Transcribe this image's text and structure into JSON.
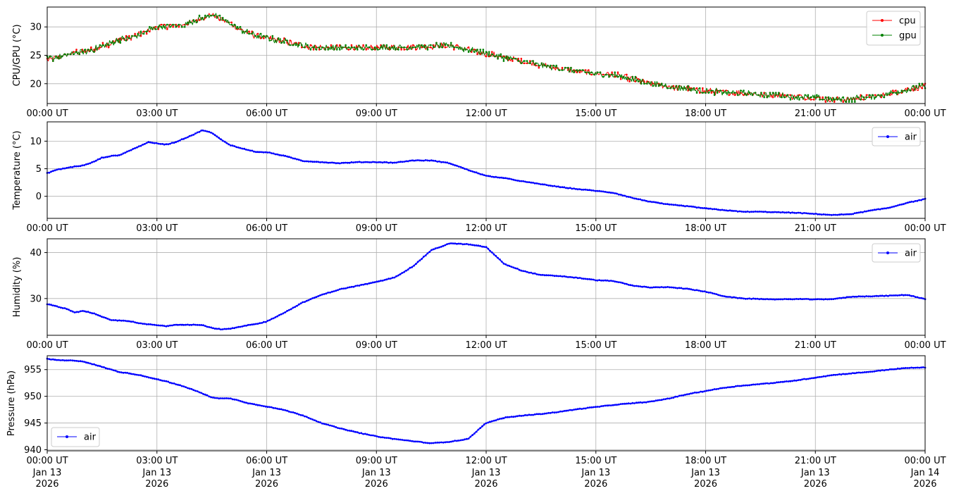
{
  "chart_data": [
    {
      "type": "line",
      "ylabel": "CPU/GPU (°C)",
      "ylim": [
        16.5,
        33.5
      ],
      "yticks": [
        20,
        25,
        30
      ],
      "grid": true,
      "legend_position": "top-right",
      "x_hours": [
        0,
        0.25,
        0.5,
        0.75,
        1,
        1.25,
        1.5,
        1.75,
        2,
        2.25,
        2.5,
        2.75,
        3,
        3.25,
        3.5,
        3.75,
        4,
        4.25,
        4.5,
        4.75,
        5,
        5.25,
        5.5,
        5.75,
        6,
        6.5,
        7,
        7.5,
        8,
        8.5,
        9,
        9.5,
        10,
        10.5,
        11,
        11.5,
        12,
        12.5,
        13,
        13.5,
        14,
        14.5,
        15,
        15.5,
        16,
        16.5,
        17,
        17.5,
        18,
        18.5,
        19,
        19.5,
        20,
        20.5,
        21,
        21.5,
        22,
        22.5,
        23,
        23.5,
        24
      ],
      "series": [
        {
          "name": "cpu",
          "color": "#ff0000",
          "values": [
            24.2,
            24.6,
            25.0,
            25.5,
            25.6,
            26.0,
            26.6,
            27.2,
            27.8,
            28.0,
            28.6,
            29.4,
            30.0,
            30.2,
            30.2,
            30.4,
            31.0,
            31.6,
            32.2,
            31.4,
            30.6,
            29.6,
            28.9,
            28.4,
            28.0,
            27.4,
            26.7,
            26.3,
            26.3,
            26.3,
            26.3,
            26.4,
            26.5,
            26.6,
            26.7,
            26.0,
            25.3,
            24.6,
            23.9,
            23.3,
            22.7,
            22.2,
            21.8,
            21.5,
            20.8,
            20.0,
            19.5,
            19.1,
            18.7,
            18.5,
            18.3,
            18.1,
            18.0,
            17.7,
            17.5,
            17.2,
            17.3,
            17.7,
            18.2,
            19.0,
            19.5
          ]
        },
        {
          "name": "gpu",
          "color": "#008000",
          "values": [
            24.3,
            24.6,
            25.0,
            25.5,
            25.6,
            26.0,
            26.6,
            27.2,
            27.8,
            28.0,
            28.6,
            29.4,
            30.0,
            30.2,
            30.2,
            30.4,
            31.0,
            31.6,
            32.2,
            31.4,
            30.6,
            29.6,
            28.9,
            28.4,
            28.0,
            27.4,
            26.7,
            26.3,
            26.3,
            26.3,
            26.3,
            26.4,
            26.5,
            26.6,
            26.7,
            26.0,
            25.3,
            24.6,
            23.9,
            23.3,
            22.7,
            22.2,
            21.8,
            21.5,
            20.8,
            20.0,
            19.5,
            19.1,
            18.7,
            18.5,
            18.3,
            18.1,
            18.0,
            17.7,
            17.5,
            17.2,
            17.3,
            17.7,
            18.2,
            19.0,
            19.6
          ]
        }
      ]
    },
    {
      "type": "line",
      "ylabel": "Temperature (°C)",
      "ylim": [
        -4,
        13.5
      ],
      "yticks": [
        0,
        5,
        10
      ],
      "grid": true,
      "legend_position": "top-right",
      "x_hours": [
        0,
        0.25,
        0.5,
        0.75,
        1,
        1.25,
        1.5,
        1.75,
        2,
        2.25,
        2.5,
        2.75,
        3,
        3.25,
        3.5,
        3.75,
        4,
        4.25,
        4.5,
        4.75,
        5,
        5.25,
        5.5,
        5.75,
        6,
        6.5,
        7,
        7.5,
        8,
        8.5,
        9,
        9.5,
        10,
        10.5,
        11,
        11.5,
        12,
        12.5,
        13,
        13.5,
        14,
        14.5,
        15,
        15.5,
        16,
        16.5,
        17,
        17.5,
        18,
        18.5,
        19,
        19.5,
        20,
        20.5,
        21,
        21.5,
        22,
        22.5,
        23,
        23.5,
        24
      ],
      "series": [
        {
          "name": "air",
          "color": "#0000ff",
          "values": [
            4.2,
            4.8,
            5.1,
            5.4,
            5.6,
            6.2,
            7.0,
            7.3,
            7.5,
            8.3,
            9.0,
            9.8,
            9.6,
            9.4,
            9.8,
            10.5,
            11.2,
            12.0,
            11.5,
            10.3,
            9.3,
            8.8,
            8.4,
            8.0,
            8.0,
            7.3,
            6.4,
            6.2,
            6.0,
            6.2,
            6.2,
            6.1,
            6.5,
            6.5,
            6.0,
            4.8,
            3.7,
            3.3,
            2.7,
            2.2,
            1.7,
            1.3,
            1.0,
            0.6,
            -0.3,
            -1.0,
            -1.5,
            -1.8,
            -2.2,
            -2.5,
            -2.8,
            -2.8,
            -2.9,
            -3.0,
            -3.2,
            -3.4,
            -3.2,
            -2.6,
            -2.1,
            -1.2,
            -0.5
          ]
        }
      ]
    },
    {
      "type": "line",
      "ylabel": "Humidity (%)",
      "ylim": [
        22,
        43
      ],
      "yticks": [
        30,
        40
      ],
      "grid": true,
      "legend_position": "top-right",
      "x_hours": [
        0,
        0.25,
        0.5,
        0.75,
        1,
        1.25,
        1.5,
        1.75,
        2,
        2.25,
        2.5,
        2.75,
        3,
        3.25,
        3.5,
        3.75,
        4,
        4.25,
        4.5,
        4.75,
        5,
        5.25,
        5.5,
        5.75,
        6,
        6.5,
        7,
        7.5,
        8,
        8.5,
        9,
        9.5,
        10,
        10.5,
        11,
        11.5,
        12,
        12.5,
        13,
        13.5,
        14,
        14.5,
        15,
        15.5,
        16,
        16.5,
        17,
        17.5,
        18,
        18.5,
        19,
        19.5,
        20,
        20.5,
        21,
        21.5,
        22,
        22.5,
        23,
        23.5,
        24
      ],
      "series": [
        {
          "name": "air",
          "color": "#0000ff",
          "values": [
            28.8,
            28.3,
            27.8,
            27.0,
            27.3,
            26.8,
            26.0,
            25.3,
            25.2,
            25.1,
            24.6,
            24.4,
            24.2,
            24.0,
            24.3,
            24.3,
            24.3,
            24.2,
            23.6,
            23.3,
            23.4,
            23.8,
            24.2,
            24.5,
            25.0,
            27.0,
            29.2,
            30.8,
            32.0,
            32.8,
            33.6,
            34.6,
            37.0,
            40.5,
            42.0,
            41.8,
            41.2,
            37.5,
            36.0,
            35.1,
            34.9,
            34.5,
            34.0,
            33.8,
            32.8,
            32.4,
            32.5,
            32.1,
            31.5,
            30.5,
            30.0,
            29.9,
            29.8,
            29.9,
            29.8,
            29.9,
            30.4,
            30.5,
            30.6,
            30.8,
            29.9
          ]
        }
      ]
    },
    {
      "type": "line",
      "ylabel": "Pressure (hPa)",
      "ylim": [
        939.8,
        957.6
      ],
      "yticks": [
        940,
        945,
        950,
        955
      ],
      "grid": true,
      "legend_position": "bottom-left",
      "x_hours": [
        0,
        0.25,
        0.5,
        0.75,
        1,
        1.25,
        1.5,
        1.75,
        2,
        2.25,
        2.5,
        2.75,
        3,
        3.25,
        3.5,
        3.75,
        4,
        4.25,
        4.5,
        4.75,
        5,
        5.25,
        5.5,
        5.75,
        6,
        6.5,
        7,
        7.5,
        8,
        8.5,
        9,
        9.5,
        10,
        10.5,
        11,
        11.5,
        12,
        12.5,
        13,
        13.5,
        14,
        14.5,
        15,
        15.5,
        16,
        16.5,
        17,
        17.5,
        18,
        18.5,
        19,
        19.5,
        20,
        20.5,
        21,
        21.5,
        22,
        22.5,
        23,
        23.5,
        24
      ],
      "series": [
        {
          "name": "air",
          "color": "#0000ff",
          "values": [
            957.0,
            956.8,
            956.7,
            956.7,
            956.5,
            956.0,
            955.5,
            955.0,
            954.5,
            954.3,
            954.0,
            953.6,
            953.2,
            952.8,
            952.3,
            951.8,
            951.2,
            950.5,
            949.8,
            949.6,
            949.6,
            949.2,
            948.7,
            948.4,
            948.1,
            947.4,
            946.4,
            945.0,
            944.0,
            943.2,
            942.5,
            942.0,
            941.6,
            941.2,
            941.5,
            942.0,
            945.0,
            946.0,
            946.4,
            946.7,
            947.1,
            947.6,
            948.0,
            948.4,
            948.7,
            949.0,
            949.6,
            950.4,
            951.0,
            951.6,
            952.0,
            952.3,
            952.6,
            953.0,
            953.5,
            954.0,
            954.3,
            954.6,
            955.0,
            955.3,
            955.4
          ]
        }
      ]
    }
  ],
  "x_tick_labels": [
    "00:00 UT",
    "03:00 UT",
    "06:00 UT",
    "09:00 UT",
    "12:00 UT",
    "15:00 UT",
    "18:00 UT",
    "21:00 UT",
    "00:00 UT"
  ],
  "x_date_labels": [
    [
      "Jan 13",
      "2026"
    ],
    [
      "Jan 13",
      "2026"
    ],
    [
      "Jan 13",
      "2026"
    ],
    [
      "Jan 13",
      "2026"
    ],
    [
      "Jan 13",
      "2026"
    ],
    [
      "Jan 13",
      "2026"
    ],
    [
      "Jan 13",
      "2026"
    ],
    [
      "Jan 13",
      "2026"
    ],
    [
      "Jan 14",
      "2026"
    ]
  ],
  "x_range_hours": [
    0,
    24
  ]
}
